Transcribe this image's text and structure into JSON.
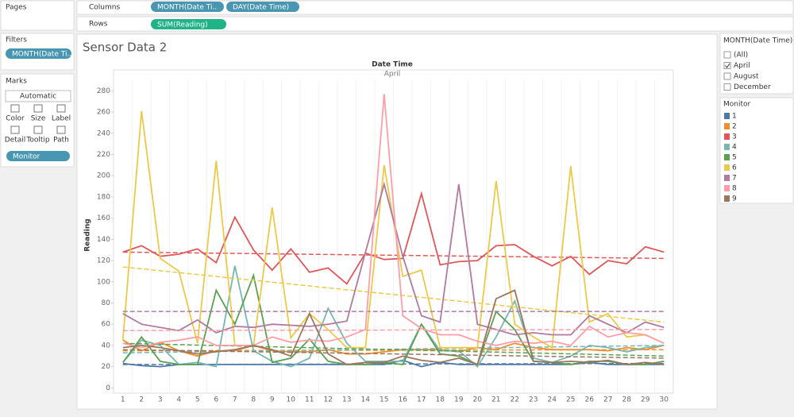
{
  "ui": {
    "pages": "Pages",
    "columns_label": "Columns",
    "columns_pills": [
      "MONTH(Date Ti..",
      "DAY(Date Time)"
    ],
    "rows_label": "Rows",
    "rows_pills": [
      "SUM(Reading)"
    ],
    "filters": {
      "title": "Filters",
      "pills": [
        "MONTH(Date Ti.."
      ]
    },
    "marks": {
      "title": "Marks",
      "mark_type": "Automatic",
      "buttons": [
        "Color",
        "Size",
        "Label",
        "Detail",
        "Tooltip",
        "Path"
      ],
      "pills": [
        "Monitor"
      ]
    },
    "filter_card": {
      "title": "MONTH(Date Time)",
      "options": [
        "(All)",
        "April",
        "August",
        "December"
      ],
      "checked": [
        false,
        true,
        false,
        false
      ]
    },
    "legend_title": "Monitor"
  },
  "chart_data": {
    "type": "line",
    "title": "Sensor Data 2",
    "x_title": "Date Time",
    "x_subtitle": "April",
    "y_title": "Reading",
    "categories": [
      1,
      2,
      3,
      4,
      5,
      6,
      7,
      8,
      9,
      10,
      11,
      12,
      13,
      14,
      15,
      16,
      17,
      18,
      19,
      20,
      21,
      22,
      23,
      24,
      25,
      26,
      27,
      28,
      29,
      30
    ],
    "ylim": [
      -5,
      290
    ],
    "yticks": [
      0,
      20,
      40,
      60,
      80,
      100,
      120,
      140,
      160,
      180,
      200,
      220,
      240,
      260,
      280
    ],
    "series": [
      {
        "name": "1",
        "color": "#4e79a7",
        "values": [
          23,
          21,
          20,
          22,
          22,
          22,
          22,
          22,
          22,
          22,
          22,
          22,
          22,
          22,
          22,
          26,
          20,
          24,
          22,
          22,
          22,
          22,
          22,
          22,
          22,
          24,
          22,
          22,
          22,
          22
        ],
        "trend": [
          22,
          23
        ]
      },
      {
        "name": "2",
        "color": "#f28e2b",
        "values": [
          45,
          35,
          43,
          35,
          30,
          35,
          35,
          40,
          35,
          34,
          34,
          36,
          32,
          32,
          34,
          36,
          36,
          36,
          34,
          38,
          36,
          42,
          38,
          36,
          36,
          36,
          35,
          38,
          36,
          40
        ],
        "trend": [
          35,
          36
        ]
      },
      {
        "name": "3",
        "color": "#e15759",
        "values": [
          128,
          134,
          124,
          126,
          131,
          118,
          161,
          130,
          111,
          131,
          109,
          113,
          98,
          127,
          121,
          122,
          183,
          116,
          119,
          120,
          134,
          135,
          124,
          115,
          124,
          107,
          120,
          117,
          133,
          128
        ],
        "trend": [
          128,
          122
        ]
      },
      {
        "name": "4",
        "color": "#76b7b2",
        "values": [
          24,
          45,
          40,
          22,
          24,
          20,
          115,
          35,
          25,
          20,
          28,
          75,
          42,
          25,
          25,
          25,
          60,
          35,
          35,
          20,
          48,
          82,
          28,
          24,
          30,
          40,
          38,
          34,
          38,
          40
        ],
        "trend": [
          33,
          40
        ]
      },
      {
        "name": "5",
        "color": "#59a14f",
        "values": [
          24,
          48,
          25,
          22,
          22,
          92,
          60,
          106,
          24,
          28,
          46,
          25,
          22,
          22,
          24,
          22,
          60,
          32,
          30,
          22,
          72,
          55,
          25,
          24,
          22,
          25,
          25,
          22,
          22,
          25
        ],
        "trend": [
          42,
          30
        ]
      },
      {
        "name": "6",
        "color": "#edc948",
        "values": [
          45,
          261,
          122,
          110,
          42,
          214,
          40,
          40,
          170,
          47,
          70,
          55,
          38,
          38,
          210,
          105,
          111,
          38,
          38,
          38,
          195,
          60,
          48,
          38,
          209,
          62,
          70,
          48,
          50,
          42
        ],
        "trend": [
          114,
          62
        ]
      },
      {
        "name": "7",
        "color": "#b07aa1",
        "values": [
          70,
          60,
          57,
          54,
          64,
          52,
          58,
          57,
          60,
          59,
          58,
          60,
          63,
          128,
          192,
          124,
          68,
          62,
          192,
          60,
          55,
          50,
          52,
          50,
          50,
          68,
          60,
          52,
          62,
          57
        ],
        "trend": [
          72,
          72
        ]
      },
      {
        "name": "8",
        "color": "#ff9da7",
        "values": [
          42,
          38,
          43,
          45,
          48,
          40,
          40,
          40,
          48,
          43,
          45,
          44,
          48,
          55,
          277,
          68,
          56,
          50,
          50,
          44,
          40,
          44,
          42,
          44,
          40,
          58,
          48,
          52,
          50,
          42
        ],
        "trend": [
          54,
          55
        ]
      },
      {
        "name": "9",
        "color": "#9c755f",
        "values": [
          38,
          40,
          38,
          35,
          32,
          34,
          36,
          40,
          36,
          30,
          70,
          32,
          22,
          24,
          24,
          30,
          26,
          24,
          28,
          22,
          84,
          92,
          25,
          24,
          25,
          24,
          26,
          22,
          24,
          22
        ],
        "trend": [
          36,
          28
        ]
      }
    ]
  }
}
